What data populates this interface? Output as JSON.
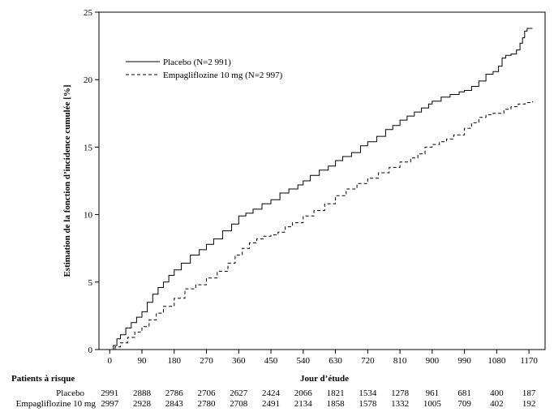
{
  "chart_data": {
    "type": "line",
    "title": "",
    "xlabel": "Jour d’étude",
    "ylabel": "Estimation de la fonction d’incidence cumulée [%]",
    "xlim": [
      -30,
      1215
    ],
    "ylim": [
      0,
      25
    ],
    "xticks": [
      0,
      90,
      180,
      270,
      360,
      450,
      540,
      630,
      720,
      810,
      900,
      990,
      1080,
      1170
    ],
    "yticks": [
      0,
      5,
      10,
      15,
      20,
      25
    ],
    "grid": false,
    "legend_position": "top-left",
    "series": [
      {
        "name": "Placebo (N=2 991)",
        "style": "solid",
        "points": [
          [
            0,
            0
          ],
          [
            10,
            0.3
          ],
          [
            20,
            0.8
          ],
          [
            30,
            1.1
          ],
          [
            45,
            1.6
          ],
          [
            60,
            2.0
          ],
          [
            75,
            2.4
          ],
          [
            90,
            2.8
          ],
          [
            105,
            3.5
          ],
          [
            120,
            4.1
          ],
          [
            135,
            4.6
          ],
          [
            150,
            5.0
          ],
          [
            165,
            5.5
          ],
          [
            180,
            5.9
          ],
          [
            200,
            6.4
          ],
          [
            225,
            7.0
          ],
          [
            250,
            7.4
          ],
          [
            270,
            7.8
          ],
          [
            290,
            8.2
          ],
          [
            315,
            8.8
          ],
          [
            340,
            9.3
          ],
          [
            360,
            9.9
          ],
          [
            380,
            10.1
          ],
          [
            400,
            10.4
          ],
          [
            425,
            10.8
          ],
          [
            450,
            11.1
          ],
          [
            475,
            11.6
          ],
          [
            500,
            11.9
          ],
          [
            525,
            12.2
          ],
          [
            540,
            12.5
          ],
          [
            560,
            12.9
          ],
          [
            585,
            13.3
          ],
          [
            610,
            13.6
          ],
          [
            630,
            14.0
          ],
          [
            650,
            14.3
          ],
          [
            675,
            14.6
          ],
          [
            700,
            15.1
          ],
          [
            720,
            15.4
          ],
          [
            745,
            15.8
          ],
          [
            770,
            16.3
          ],
          [
            790,
            16.6
          ],
          [
            810,
            17.0
          ],
          [
            830,
            17.3
          ],
          [
            850,
            17.6
          ],
          [
            870,
            17.9
          ],
          [
            890,
            18.2
          ],
          [
            900,
            18.4
          ],
          [
            925,
            18.7
          ],
          [
            950,
            18.9
          ],
          [
            975,
            19.1
          ],
          [
            990,
            19.2
          ],
          [
            1010,
            19.5
          ],
          [
            1030,
            19.9
          ],
          [
            1050,
            20.4
          ],
          [
            1070,
            20.6
          ],
          [
            1085,
            21.0
          ],
          [
            1095,
            21.6
          ],
          [
            1105,
            21.8
          ],
          [
            1120,
            21.9
          ],
          [
            1135,
            22.2
          ],
          [
            1145,
            22.7
          ],
          [
            1152,
            23.1
          ],
          [
            1158,
            23.6
          ],
          [
            1165,
            23.8
          ],
          [
            1180,
            23.8
          ]
        ]
      },
      {
        "name": "Empagliflozine 10 mg (N=2 997)",
        "style": "dashed",
        "points": [
          [
            0,
            0
          ],
          [
            15,
            0.2
          ],
          [
            30,
            0.5
          ],
          [
            50,
            0.9
          ],
          [
            70,
            1.3
          ],
          [
            90,
            1.7
          ],
          [
            110,
            2.2
          ],
          [
            130,
            2.7
          ],
          [
            150,
            3.2
          ],
          [
            180,
            3.8
          ],
          [
            210,
            4.5
          ],
          [
            240,
            4.8
          ],
          [
            270,
            5.3
          ],
          [
            300,
            5.8
          ],
          [
            330,
            6.4
          ],
          [
            350,
            7.0
          ],
          [
            370,
            7.5
          ],
          [
            390,
            7.9
          ],
          [
            410,
            8.2
          ],
          [
            430,
            8.4
          ],
          [
            450,
            8.5
          ],
          [
            470,
            8.7
          ],
          [
            490,
            9.1
          ],
          [
            510,
            9.4
          ],
          [
            540,
            9.9
          ],
          [
            570,
            10.3
          ],
          [
            600,
            10.8
          ],
          [
            630,
            11.4
          ],
          [
            660,
            11.9
          ],
          [
            690,
            12.3
          ],
          [
            720,
            12.7
          ],
          [
            750,
            13.1
          ],
          [
            780,
            13.5
          ],
          [
            810,
            13.9
          ],
          [
            840,
            14.2
          ],
          [
            860,
            14.5
          ],
          [
            880,
            15.0
          ],
          [
            900,
            15.2
          ],
          [
            920,
            15.4
          ],
          [
            940,
            15.6
          ],
          [
            960,
            15.9
          ],
          [
            990,
            16.4
          ],
          [
            1010,
            16.8
          ],
          [
            1030,
            17.2
          ],
          [
            1050,
            17.4
          ],
          [
            1070,
            17.5
          ],
          [
            1085,
            17.5
          ],
          [
            1100,
            17.8
          ],
          [
            1120,
            18.0
          ],
          [
            1140,
            18.2
          ],
          [
            1160,
            18.3
          ],
          [
            1180,
            18.4
          ]
        ]
      }
    ],
    "risk_table": {
      "title": "Patients à risque",
      "rows": [
        {
          "label": "Placebo",
          "values": [
            "2991",
            "2888",
            "2786",
            "2706",
            "2627",
            "2424",
            "2066",
            "1821",
            "1534",
            "1278",
            "961",
            "681",
            "400",
            "187"
          ]
        },
        {
          "label": "Empagliflozine 10 mg",
          "values": [
            "2997",
            "2928",
            "2843",
            "2780",
            "2708",
            "2491",
            "2134",
            "1858",
            "1578",
            "1332",
            "1005",
            "709",
            "402",
            "192"
          ]
        }
      ]
    }
  }
}
